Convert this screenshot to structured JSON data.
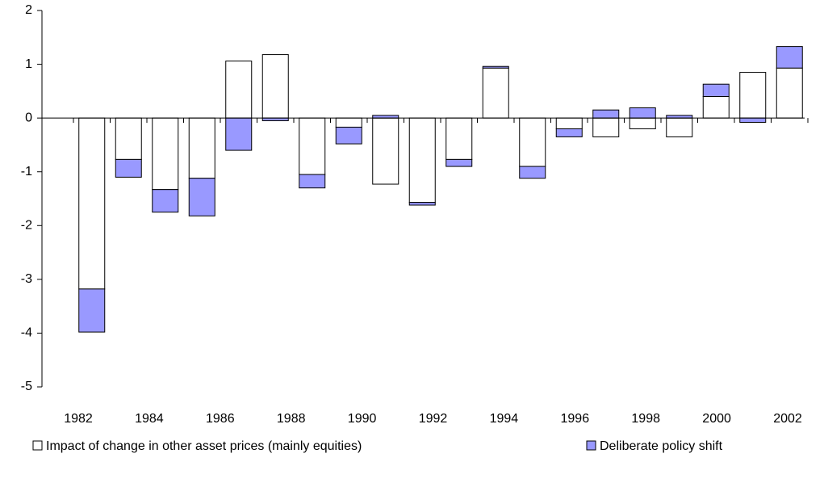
{
  "chart_data": {
    "type": "bar",
    "stacked": true,
    "xtick_labels": [
      "1982",
      "1984",
      "1986",
      "1988",
      "1990",
      "1992",
      "1994",
      "1996",
      "1998",
      "2000",
      "2002"
    ],
    "series": [
      {
        "name": "Impact of change in other asset prices (mainly equities)",
        "color": "#ffffff",
        "values": [
          -3.18,
          -0.77,
          -1.33,
          -1.12,
          1.06,
          1.18,
          -1.05,
          -0.17,
          -1.23,
          -1.57,
          -0.77,
          0.93,
          -0.9,
          -0.2,
          -0.35,
          -0.2,
          -0.35,
          0.4,
          0.85,
          0.93
        ]
      },
      {
        "name": "Deliberate policy shift",
        "color": "#9999ff",
        "values": [
          -0.8,
          -0.33,
          -0.42,
          -0.7,
          -0.6,
          -0.05,
          -0.25,
          -0.31,
          0.05,
          -0.05,
          -0.13,
          0.03,
          -0.22,
          -0.15,
          0.15,
          0.19,
          0.05,
          0.23,
          -0.08,
          0.4
        ]
      }
    ],
    "ylim": [
      -5,
      2
    ],
    "yticks": [
      -5,
      -4,
      -3,
      -2,
      -1,
      0,
      1,
      2
    ],
    "grid": false,
    "legend": "bottom"
  }
}
